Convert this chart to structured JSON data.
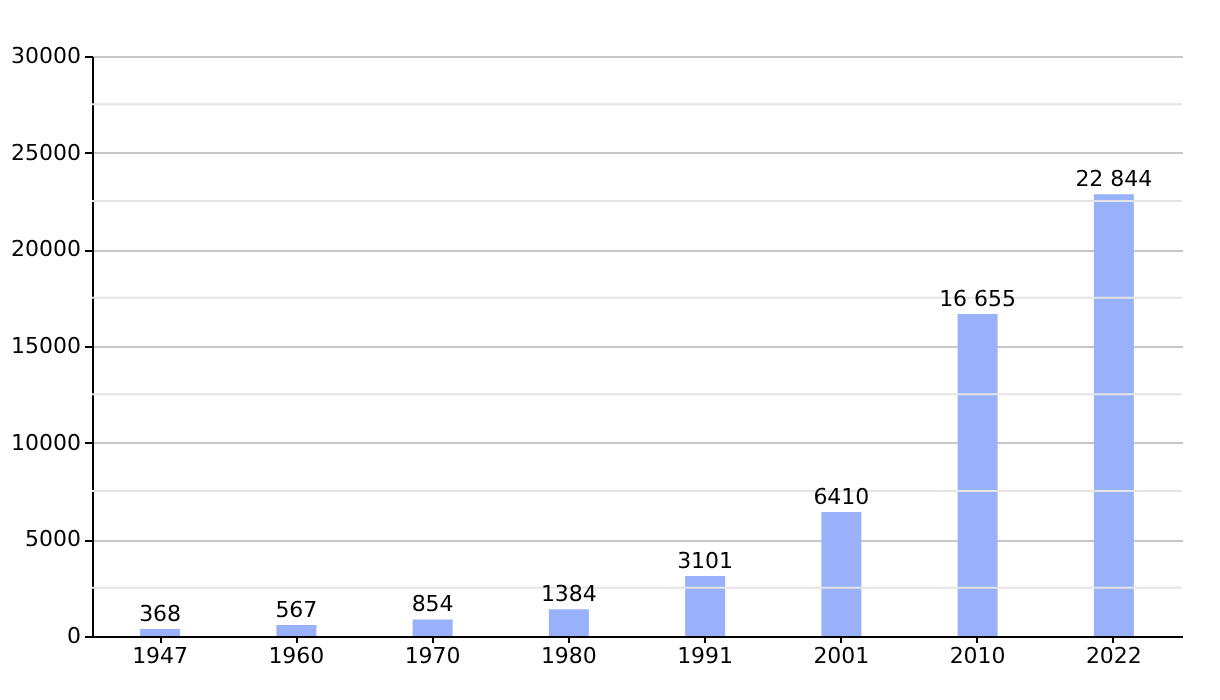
{
  "chart_data": {
    "type": "bar",
    "categories": [
      "1947",
      "1960",
      "1970",
      "1980",
      "1991",
      "2001",
      "2010",
      "2022"
    ],
    "values": [
      368,
      567,
      854,
      1384,
      3101,
      6410,
      16655,
      22844
    ],
    "value_labels": [
      "368",
      "567",
      "854",
      "1384",
      "3101",
      "6410",
      "16 655",
      "22 844"
    ],
    "color": "#99b0fb",
    "ylim": [
      0,
      30000
    ],
    "yticks": [
      0,
      {
        "value": 2500,
        "label": null
      },
      5000,
      {
        "value": 7500,
        "label": null
      },
      10000,
      {
        "value": 12500,
        "label": null
      },
      15000,
      {
        "value": 17500,
        "label": null
      },
      20000,
      {
        "value": 22500,
        "label": null
      },
      25000,
      {
        "value": 27500,
        "label": null
      },
      30000
    ],
    "grid": "y"
  }
}
